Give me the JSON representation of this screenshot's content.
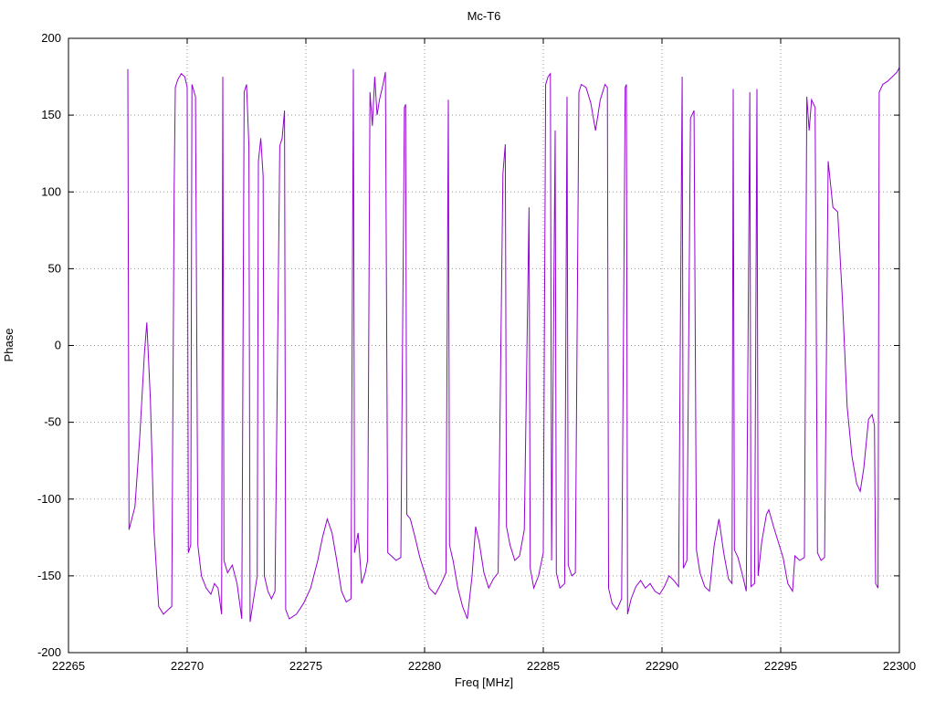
{
  "chart_data": {
    "type": "line",
    "title": "Mc-T6",
    "xlabel": "Freq [MHz]",
    "ylabel": "Phase",
    "xlim": [
      22265,
      22300
    ],
    "ylim": [
      -200,
      200
    ],
    "xticks": [
      22265,
      22270,
      22275,
      22280,
      22285,
      22290,
      22295,
      22300
    ],
    "yticks": [
      -200,
      -150,
      -100,
      -50,
      0,
      50,
      100,
      150,
      200
    ],
    "grid": true,
    "legend_position": "none",
    "line_color": "#9400d3",
    "grid_color": "#9a9a9a",
    "border_color": "#000000",
    "points": [
      [
        22267.5,
        180
      ],
      [
        22267.55,
        -120
      ],
      [
        22267.8,
        -105
      ],
      [
        22268.0,
        -60
      ],
      [
        22268.2,
        -5
      ],
      [
        22268.3,
        15
      ],
      [
        22268.45,
        -35
      ],
      [
        22268.6,
        -120
      ],
      [
        22268.8,
        -170
      ],
      [
        22269.0,
        -175
      ],
      [
        22269.2,
        -172
      ],
      [
        22269.35,
        -170
      ],
      [
        22269.45,
        100
      ],
      [
        22269.5,
        168
      ],
      [
        22269.6,
        173
      ],
      [
        22269.75,
        177
      ],
      [
        22269.9,
        175
      ],
      [
        22270.0,
        168
      ],
      [
        22270.05,
        -135
      ],
      [
        22270.15,
        -130
      ],
      [
        22270.2,
        170
      ],
      [
        22270.35,
        162
      ],
      [
        22270.45,
        -130
      ],
      [
        22270.6,
        -150
      ],
      [
        22270.8,
        -158
      ],
      [
        22271.0,
        -162
      ],
      [
        22271.15,
        -155
      ],
      [
        22271.3,
        -158
      ],
      [
        22271.45,
        -175
      ],
      [
        22271.5,
        175
      ],
      [
        22271.55,
        -140
      ],
      [
        22271.7,
        -148
      ],
      [
        22271.9,
        -143
      ],
      [
        22272.1,
        -155
      ],
      [
        22272.3,
        -178
      ],
      [
        22272.4,
        165
      ],
      [
        22272.5,
        170
      ],
      [
        22272.6,
        130
      ],
      [
        22272.65,
        -180
      ],
      [
        22272.8,
        -165
      ],
      [
        22272.95,
        -150
      ],
      [
        22273.0,
        120
      ],
      [
        22273.1,
        135
      ],
      [
        22273.2,
        110
      ],
      [
        22273.25,
        -150
      ],
      [
        22273.4,
        -160
      ],
      [
        22273.55,
        -165
      ],
      [
        22273.7,
        -160
      ],
      [
        22273.9,
        130
      ],
      [
        22274.0,
        135
      ],
      [
        22274.1,
        153
      ],
      [
        22274.15,
        -172
      ],
      [
        22274.3,
        -178
      ],
      [
        22274.6,
        -175
      ],
      [
        22274.9,
        -168
      ],
      [
        22275.2,
        -158
      ],
      [
        22275.5,
        -140
      ],
      [
        22275.7,
        -125
      ],
      [
        22275.9,
        -113
      ],
      [
        22276.1,
        -122
      ],
      [
        22276.3,
        -140
      ],
      [
        22276.5,
        -160
      ],
      [
        22276.7,
        -167
      ],
      [
        22276.9,
        -165
      ],
      [
        22277.0,
        180
      ],
      [
        22277.05,
        -135
      ],
      [
        22277.2,
        -122
      ],
      [
        22277.35,
        -155
      ],
      [
        22277.5,
        -148
      ],
      [
        22277.6,
        -140
      ],
      [
        22277.7,
        165
      ],
      [
        22277.8,
        143
      ],
      [
        22277.9,
        175
      ],
      [
        22278.0,
        150
      ],
      [
        22278.1,
        160
      ],
      [
        22278.25,
        170
      ],
      [
        22278.35,
        178
      ],
      [
        22278.45,
        -135
      ],
      [
        22278.6,
        -137
      ],
      [
        22278.8,
        -140
      ],
      [
        22279.0,
        -138
      ],
      [
        22279.15,
        155
      ],
      [
        22279.2,
        157
      ],
      [
        22279.25,
        -110
      ],
      [
        22279.4,
        -113
      ],
      [
        22279.6,
        -125
      ],
      [
        22279.8,
        -138
      ],
      [
        22280.0,
        -148
      ],
      [
        22280.2,
        -158
      ],
      [
        22280.45,
        -162
      ],
      [
        22280.7,
        -155
      ],
      [
        22280.9,
        -148
      ],
      [
        22281.0,
        160
      ],
      [
        22281.05,
        -130
      ],
      [
        22281.2,
        -140
      ],
      [
        22281.4,
        -158
      ],
      [
        22281.6,
        -170
      ],
      [
        22281.8,
        -178
      ],
      [
        22282.0,
        -150
      ],
      [
        22282.15,
        -118
      ],
      [
        22282.3,
        -128
      ],
      [
        22282.5,
        -148
      ],
      [
        22282.7,
        -158
      ],
      [
        22282.9,
        -152
      ],
      [
        22283.1,
        -148
      ],
      [
        22283.3,
        112
      ],
      [
        22283.4,
        131
      ],
      [
        22283.45,
        -118
      ],
      [
        22283.6,
        -130
      ],
      [
        22283.8,
        -140
      ],
      [
        22284.0,
        -137
      ],
      [
        22284.2,
        -120
      ],
      [
        22284.4,
        90
      ],
      [
        22284.45,
        -145
      ],
      [
        22284.6,
        -158
      ],
      [
        22284.8,
        -150
      ],
      [
        22285.0,
        -135
      ],
      [
        22285.1,
        170
      ],
      [
        22285.2,
        175
      ],
      [
        22285.3,
        177
      ],
      [
        22285.35,
        -140
      ],
      [
        22285.5,
        140
      ],
      [
        22285.55,
        -148
      ],
      [
        22285.7,
        -158
      ],
      [
        22285.9,
        -155
      ],
      [
        22286.0,
        162
      ],
      [
        22286.05,
        -143
      ],
      [
        22286.2,
        -150
      ],
      [
        22286.35,
        -148
      ],
      [
        22286.5,
        165
      ],
      [
        22286.6,
        170
      ],
      [
        22286.8,
        168
      ],
      [
        22287.0,
        158
      ],
      [
        22287.2,
        140
      ],
      [
        22287.4,
        160
      ],
      [
        22287.6,
        170
      ],
      [
        22287.7,
        168
      ],
      [
        22287.75,
        -158
      ],
      [
        22287.9,
        -168
      ],
      [
        22288.1,
        -172
      ],
      [
        22288.3,
        -165
      ],
      [
        22288.45,
        168
      ],
      [
        22288.5,
        170
      ],
      [
        22288.55,
        -175
      ],
      [
        22288.7,
        -165
      ],
      [
        22288.9,
        -157
      ],
      [
        22289.1,
        -153
      ],
      [
        22289.3,
        -158
      ],
      [
        22289.5,
        -155
      ],
      [
        22289.7,
        -160
      ],
      [
        22289.9,
        -162
      ],
      [
        22290.1,
        -157
      ],
      [
        22290.3,
        -150
      ],
      [
        22290.5,
        -153
      ],
      [
        22290.7,
        -157
      ],
      [
        22290.85,
        175
      ],
      [
        22290.9,
        -145
      ],
      [
        22291.05,
        -140
      ],
      [
        22291.2,
        148
      ],
      [
        22291.35,
        153
      ],
      [
        22291.45,
        -133
      ],
      [
        22291.6,
        -148
      ],
      [
        22291.8,
        -157
      ],
      [
        22292.0,
        -160
      ],
      [
        22292.2,
        -130
      ],
      [
        22292.4,
        -113
      ],
      [
        22292.6,
        -135
      ],
      [
        22292.8,
        -152
      ],
      [
        22292.95,
        -155
      ],
      [
        22293.0,
        167
      ],
      [
        22293.05,
        -133
      ],
      [
        22293.2,
        -138
      ],
      [
        22293.4,
        -150
      ],
      [
        22293.55,
        -160
      ],
      [
        22293.7,
        165
      ],
      [
        22293.75,
        -157
      ],
      [
        22293.9,
        -155
      ],
      [
        22294.0,
        167
      ],
      [
        22294.05,
        -150
      ],
      [
        22294.2,
        -128
      ],
      [
        22294.4,
        -110
      ],
      [
        22294.5,
        -107
      ],
      [
        22294.7,
        -118
      ],
      [
        22294.9,
        -128
      ],
      [
        22295.1,
        -138
      ],
      [
        22295.3,
        -155
      ],
      [
        22295.5,
        -160
      ],
      [
        22295.6,
        -137
      ],
      [
        22295.8,
        -140
      ],
      [
        22296.0,
        -138
      ],
      [
        22296.1,
        162
      ],
      [
        22296.2,
        140
      ],
      [
        22296.3,
        160
      ],
      [
        22296.45,
        155
      ],
      [
        22296.55,
        -135
      ],
      [
        22296.7,
        -140
      ],
      [
        22296.85,
        -138
      ],
      [
        22297.0,
        120
      ],
      [
        22297.2,
        90
      ],
      [
        22297.4,
        87
      ],
      [
        22297.6,
        30
      ],
      [
        22297.8,
        -40
      ],
      [
        22298.0,
        -72
      ],
      [
        22298.2,
        -90
      ],
      [
        22298.35,
        -95
      ],
      [
        22298.5,
        -80
      ],
      [
        22298.7,
        -48
      ],
      [
        22298.85,
        -45
      ],
      [
        22298.95,
        -52
      ],
      [
        22299.0,
        -155
      ],
      [
        22299.1,
        -158
      ],
      [
        22299.15,
        165
      ],
      [
        22299.3,
        170
      ],
      [
        22299.5,
        172
      ],
      [
        22299.7,
        175
      ],
      [
        22299.9,
        178
      ],
      [
        22300.0,
        181
      ]
    ]
  }
}
